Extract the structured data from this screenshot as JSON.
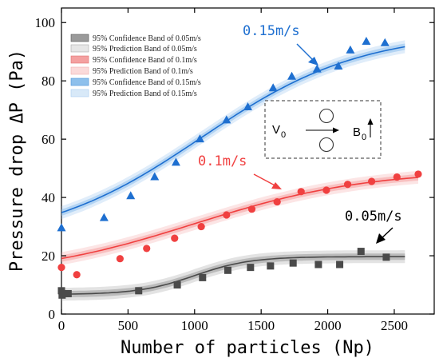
{
  "chart_data": {
    "type": "scatter",
    "xlabel": "Number of particles (Np)",
    "ylabel": "Pressure drop ΔP (Pa)",
    "xlim": [
      0,
      2800
    ],
    "ylim": [
      0,
      105
    ],
    "xticks": [
      "0",
      "500",
      "1000",
      "1500",
      "2000",
      "2500"
    ],
    "yticks": [
      "0",
      "20",
      "40",
      "60",
      "80",
      "100"
    ],
    "grid": false,
    "legend_position": "top-left",
    "legend": [
      "95% Confidence Band of 0.05m/s",
      "95% Prediction Band of 0.05m/s",
      "95% Confidence Band of 0.1m/s",
      "95% Prediction Band of 0.1m/s",
      "95% Confidence Band of 0.15m/s",
      "95% Prediction Band of 0.15m/s"
    ],
    "series": [
      {
        "label": "0.05m/s",
        "marker": "square",
        "color": "#4a4a4a",
        "band_color": "#9a9a9a",
        "points": [
          [
            0,
            8
          ],
          [
            5,
            6.5
          ],
          [
            50,
            7
          ],
          [
            580,
            8
          ],
          [
            870,
            10
          ],
          [
            1060,
            12.5
          ],
          [
            1250,
            15
          ],
          [
            1420,
            16
          ],
          [
            1570,
            16.5
          ],
          [
            1740,
            17.5
          ],
          [
            1930,
            17
          ],
          [
            2090,
            17
          ],
          [
            2250,
            21.5
          ],
          [
            2440,
            19.5
          ]
        ],
        "fit": {
          "A1": 6.7,
          "A2": 19.7,
          "x0": 1000,
          "dx": 210,
          "xmax": 2580
        }
      },
      {
        "label": "0.1m/s",
        "marker": "circle",
        "color": "#f04040",
        "band_color": "#f4a0a0",
        "points": [
          [
            0,
            16
          ],
          [
            115,
            13.5
          ],
          [
            440,
            19
          ],
          [
            640,
            22.5
          ],
          [
            850,
            26
          ],
          [
            1050,
            30
          ],
          [
            1240,
            34
          ],
          [
            1430,
            36
          ],
          [
            1620,
            38.5
          ],
          [
            1800,
            42
          ],
          [
            1990,
            42.5
          ],
          [
            2150,
            44.5
          ],
          [
            2330,
            45.5
          ],
          [
            2520,
            47
          ],
          [
            2680,
            48
          ]
        ],
        "fit": {
          "A1": 12.5,
          "A2": 49.5,
          "x0": 1000,
          "dx": 650,
          "xmax": 2680
        }
      },
      {
        "label": "0.15m/s",
        "marker": "triangle",
        "color": "#1e6fd0",
        "band_color": "#8ec0ec",
        "points": [
          [
            0,
            29.5
          ],
          [
            320,
            33
          ],
          [
            520,
            40.5
          ],
          [
            700,
            47
          ],
          [
            860,
            52
          ],
          [
            1040,
            60
          ],
          [
            1240,
            66.5
          ],
          [
            1400,
            71
          ],
          [
            1590,
            77.5
          ],
          [
            1730,
            81.5
          ],
          [
            1920,
            84
          ],
          [
            2080,
            85
          ],
          [
            2170,
            90.5
          ],
          [
            2290,
            93.5
          ],
          [
            2430,
            93
          ]
        ],
        "fit": {
          "A1": 24,
          "A2": 97,
          "x0": 1050,
          "dx": 600,
          "xmax": 2580
        }
      }
    ],
    "annotations": [
      "0.15m/s",
      "0.1m/s",
      "0.05m/s"
    ],
    "inset": {
      "velocity_label": "V",
      "velocity_sub": "0",
      "field_label": "B",
      "field_sub": "0"
    }
  }
}
